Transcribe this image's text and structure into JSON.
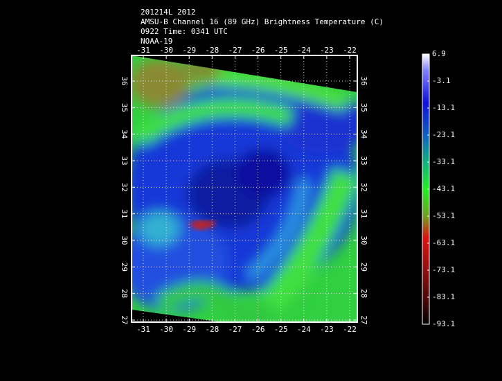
{
  "header": {
    "lines": [
      "201214L 2012",
      "AMSU-B Channel 16 (89 GHz) Brightness Temperature (C)",
      "0922 Time: 0341 UTC",
      "NOAA-19"
    ]
  },
  "map": {
    "xticks": [
      -31,
      -30,
      -29,
      -28,
      -27,
      -26,
      -25,
      -24,
      -23,
      -22
    ],
    "yticks": [
      27,
      28,
      29,
      30,
      31,
      32,
      33,
      34,
      35,
      36
    ],
    "grid": true
  },
  "colorbar": {
    "ticks": [
      6.9,
      -3.1,
      -13.1,
      -23.1,
      -33.1,
      -43.1,
      -53.1,
      -63.1,
      -73.1,
      -83.1,
      -93.1
    ]
  }
}
